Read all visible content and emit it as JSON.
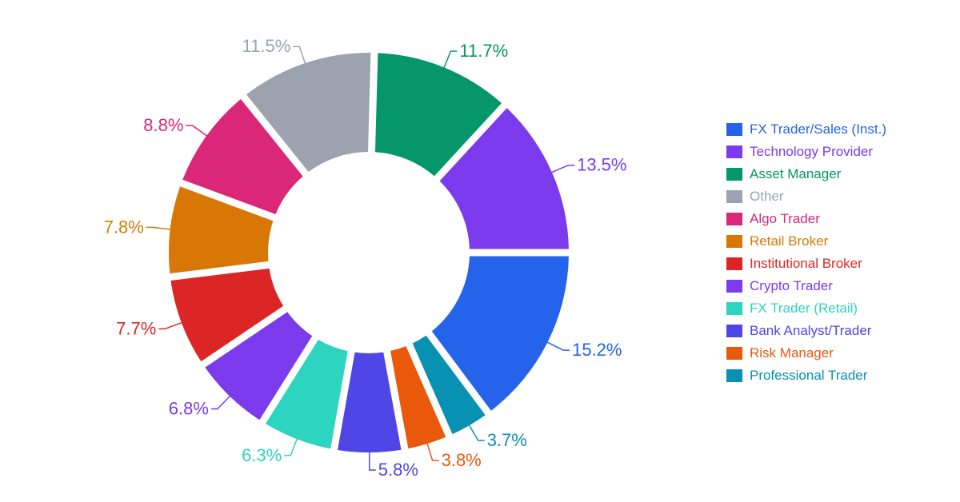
{
  "chart_data": {
    "type": "donut",
    "title": "",
    "slices": [
      {
        "name": "FX Trader/Sales (Inst.)",
        "value": 15.2,
        "label": "15.2%",
        "color": "#2563eb"
      },
      {
        "name": "Professional Trader",
        "value": 3.7,
        "label": "3.7%",
        "color": "#0891b2"
      },
      {
        "name": "Risk Manager",
        "value": 3.8,
        "label": "3.8%",
        "color": "#ea580c"
      },
      {
        "name": "Bank Analyst/Trader",
        "value": 5.8,
        "label": "5.8%",
        "color": "#4f46e5"
      },
      {
        "name": "FX Trader (Retail)",
        "value": 6.3,
        "label": "6.3%",
        "color": "#2dd4bf"
      },
      {
        "name": "Crypto Trader",
        "value": 6.8,
        "label": "6.8%",
        "color": "#7c3aed"
      },
      {
        "name": "Institutional Broker",
        "value": 7.7,
        "label": "7.7%",
        "color": "#dc2626"
      },
      {
        "name": "Retail Broker",
        "value": 7.8,
        "label": "7.8%",
        "color": "#d97706"
      },
      {
        "name": "Algo Trader",
        "value": 8.8,
        "label": "8.8%",
        "color": "#db2777"
      },
      {
        "name": "Other",
        "value": 11.5,
        "label": "11.5%",
        "color": "#9ca3af"
      },
      {
        "name": "Asset Manager",
        "value": 11.7,
        "label": "11.7%",
        "color": "#059669"
      },
      {
        "name": "Technology Provider",
        "value": 13.5,
        "label": "13.5%",
        "color": "#7c3aed"
      }
    ],
    "legend": {
      "position": "right",
      "entries": [
        {
          "name": "FX Trader/Sales (Inst.)",
          "color": "#2563eb"
        },
        {
          "name": "Technology Provider",
          "color": "#7c3aed"
        },
        {
          "name": "Asset Manager",
          "color": "#059669"
        },
        {
          "name": "Other",
          "color": "#9ca3af"
        },
        {
          "name": "Algo Trader",
          "color": "#db2777"
        },
        {
          "name": "Retail Broker",
          "color": "#d97706"
        },
        {
          "name": "Institutional Broker",
          "color": "#dc2626"
        },
        {
          "name": "Crypto Trader",
          "color": "#7c3aed"
        },
        {
          "name": "FX Trader (Retail)",
          "color": "#2dd4bf"
        },
        {
          "name": "Bank Analyst/Trader",
          "color": "#4f46e5"
        },
        {
          "name": "Risk Manager",
          "color": "#ea580c"
        },
        {
          "name": "Professional Trader",
          "color": "#0891b2"
        }
      ]
    }
  }
}
